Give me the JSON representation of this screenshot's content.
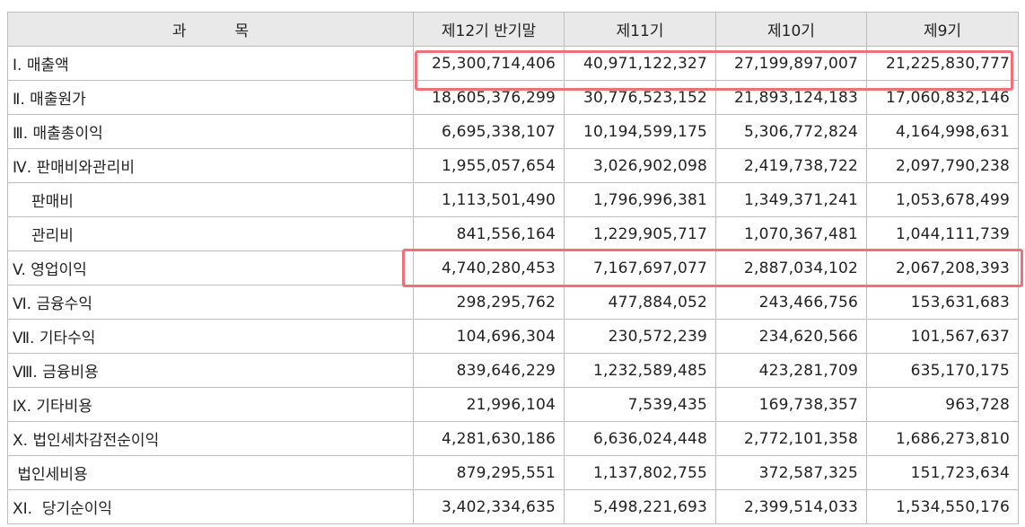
{
  "headers": [
    "과          목",
    "제12기 반기말",
    "제11기",
    "제10기",
    "제9기"
  ],
  "rows": [
    {
      "label": "I. 매출액",
      "values": [
        "25,300,714,406",
        "40,971,122,327",
        "27,199,897,007",
        "21,225,830,777"
      ],
      "indent": false
    },
    {
      "label": "Ⅱ. 매출원가",
      "values": [
        "18,605,376,299",
        "30,776,523,152",
        "21,893,124,183",
        "17,060,832,146"
      ],
      "indent": false
    },
    {
      "label": "Ⅲ. 매출총이익",
      "values": [
        "6,695,338,107",
        "10,194,599,175",
        "5,306,772,824",
        "4,164,998,631"
      ],
      "indent": false
    },
    {
      "label": "Ⅳ. 판매비와관리비",
      "values": [
        "1,955,057,654",
        "3,026,902,098",
        "2,419,738,722",
        "2,097,790,238"
      ],
      "indent": false
    },
    {
      "label": "판매비",
      "values": [
        "1,113,501,490",
        "1,796,996,381",
        "1,349,371,241",
        "1,053,678,499"
      ],
      "indent": true
    },
    {
      "label": "관리비",
      "values": [
        "841,556,164",
        "1,229,905,717",
        "1,070,367,481",
        "1,044,111,739"
      ],
      "indent": true
    },
    {
      "label": "V. 영업이익",
      "values": [
        "4,740,280,453",
        "7,167,697,077",
        "2,887,034,102",
        "2,067,208,393"
      ],
      "indent": false
    },
    {
      "label": "Ⅵ. 금융수익",
      "values": [
        "298,295,762",
        "477,884,052",
        "243,466,756",
        "153,631,683"
      ],
      "indent": false
    },
    {
      "label": "Ⅶ. 기타수익",
      "values": [
        "104,696,304",
        "230,572,239",
        "234,620,566",
        "101,567,637"
      ],
      "indent": false
    },
    {
      "label": "Ⅷ. 금융비용",
      "values": [
        "839,646,229",
        "1,232,589,485",
        "423,281,709",
        "635,170,175"
      ],
      "indent": false
    },
    {
      "label": "Ⅸ. 기타비용",
      "values": [
        "21,996,104",
        "7,539,435",
        "169,738,357",
        "963,728"
      ],
      "indent": false
    },
    {
      "label": "X. 법인세차감전순이익",
      "values": [
        "4,281,630,186",
        "6,636,024,448",
        "2,772,101,358",
        "1,686,273,810"
      ],
      "indent": false
    },
    {
      "label": " 법인세비용",
      "values": [
        "879,295,551",
        "1,137,802,755",
        "372,587,325",
        "151,723,634"
      ],
      "indent": false
    },
    {
      "label": "XI.  당기순이익",
      "values": [
        "3,402,334,635",
        "5,498,221,693",
        "2,399,514,033",
        "1,534,550,176"
      ],
      "indent": false
    }
  ],
  "highlight_color": "#f07079"
}
